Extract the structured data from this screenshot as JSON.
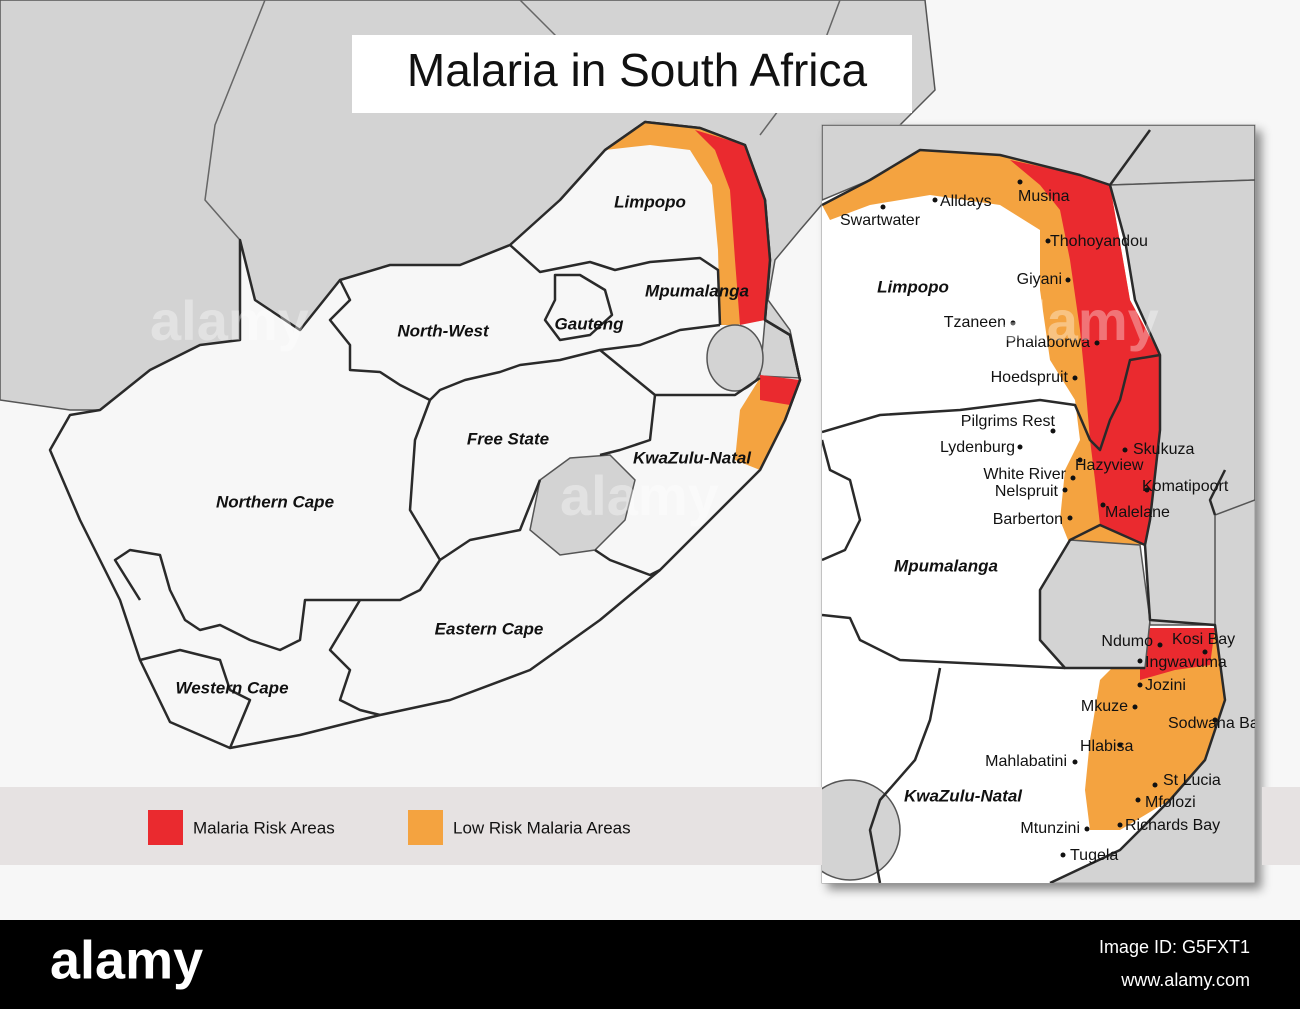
{
  "title": "Malaria in South Africa",
  "main_map": {
    "provinces": [
      "Limpopo",
      "Mpumalanga",
      "North-West",
      "Gauteng",
      "Free State",
      "KwaZulu-Natal",
      "Northern Cape",
      "Eastern Cape",
      "Western Cape"
    ]
  },
  "inset_map": {
    "provinces": [
      "Limpopo",
      "Mpumalanga",
      "KwaZulu-Natal"
    ],
    "towns": [
      "Alldays",
      "Swartwater",
      "Musina",
      "Thohoyandou",
      "Giyani",
      "Tzaneen",
      "Phalaborwa",
      "Hoedspruit",
      "Pilgrims Rest",
      "Lydenburg",
      "Skukuza",
      "Hazyview",
      "White River",
      "Nelspruit",
      "Komatipoort",
      "Barberton",
      "Malelane",
      "Ndumo",
      "Kosi Bay",
      "Ingwavuma",
      "Jozini",
      "Mkuze",
      "Sodwana Bay",
      "Hlabisa",
      "Mahlabatini",
      "St Lucia",
      "Mfolozi",
      "Richards Bay",
      "Mtunzini",
      "Tugela"
    ]
  },
  "legend": [
    {
      "label": "Malaria Risk Areas",
      "color": "#ea2a2f"
    },
    {
      "label": "Low Risk Malaria Areas",
      "color": "#f4a340"
    }
  ],
  "watermark": "alamy",
  "footer": {
    "brand": "alamy",
    "image_id": "Image ID: G5FXT1",
    "url": "www.alamy.com"
  }
}
